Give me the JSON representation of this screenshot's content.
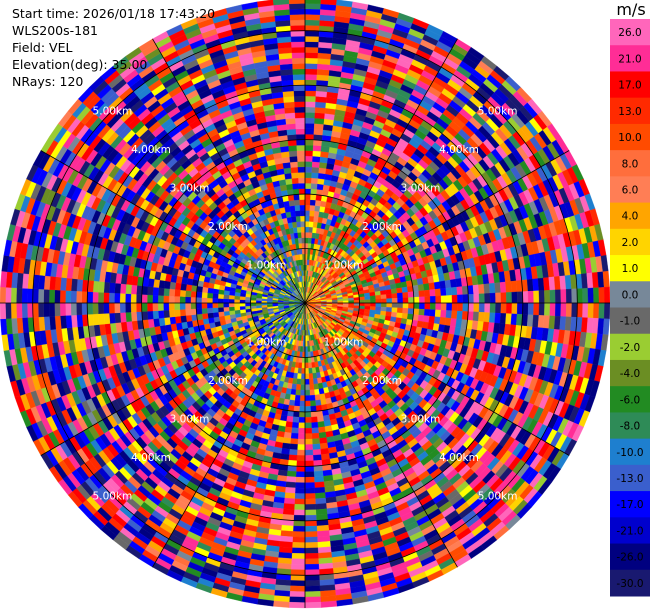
{
  "header": {
    "start_time": "Start time: 2026/01/18 17:43:20",
    "instrument": "WLS200s-181",
    "field": "Field: VEL",
    "elevation": "Elevation(deg): 35.00",
    "nrays": "NRays: 120"
  },
  "chart_data": {
    "type": "heatmap",
    "projection": "polar (PPI scan)",
    "field": "VEL",
    "units": "m/s",
    "nrays": 120,
    "elevation_deg": 35.0,
    "range_rings_km": [
      1.0,
      2.0,
      3.0,
      4.0,
      5.0
    ],
    "ring_labels": [
      "1.00km",
      "2.00km",
      "3.00km",
      "4.00km",
      "5.00km"
    ],
    "max_range_km": 5.6,
    "colorbar": {
      "title": "m/s",
      "tick_labels": [
        "26.0",
        "21.0",
        "17.0",
        "13.0",
        "10.0",
        "8.0",
        "6.0",
        "4.0",
        "2.0",
        "1.0",
        "0.0",
        "-1.0",
        "-2.0",
        "-4.0",
        "-6.0",
        "-8.0",
        "-10.0",
        "-13.0",
        "-17.0",
        "-21.0",
        "-26.0",
        "-30.0"
      ],
      "bins": [
        {
          "lo": 26,
          "hi": 30,
          "color": "#ff66bb"
        },
        {
          "lo": 21,
          "hi": 26,
          "color": "#ff2d96"
        },
        {
          "lo": 17,
          "hi": 21,
          "color": "#ff0000"
        },
        {
          "lo": 13,
          "hi": 17,
          "color": "#ff2a00"
        },
        {
          "lo": 10,
          "hi": 13,
          "color": "#ff4b00"
        },
        {
          "lo": 8,
          "hi": 10,
          "color": "#ff6e3c"
        },
        {
          "lo": 6,
          "hi": 8,
          "color": "#ff7e55"
        },
        {
          "lo": 4,
          "hi": 6,
          "color": "#ffa500"
        },
        {
          "lo": 2,
          "hi": 4,
          "color": "#ffd400"
        },
        {
          "lo": 1,
          "hi": 2,
          "color": "#ffff00"
        },
        {
          "lo": 0,
          "hi": 1,
          "color": "#778899"
        },
        {
          "lo": -1,
          "hi": 0,
          "color": "#696969"
        },
        {
          "lo": -2,
          "hi": -1,
          "color": "#9acd32"
        },
        {
          "lo": -4,
          "hi": -2,
          "color": "#6b8e23"
        },
        {
          "lo": -6,
          "hi": -4,
          "color": "#228b22"
        },
        {
          "lo": -8,
          "hi": -6,
          "color": "#2e8b57"
        },
        {
          "lo": -10,
          "hi": -8,
          "color": "#1e7fcf"
        },
        {
          "lo": -13,
          "hi": -10,
          "color": "#3a5fcd"
        },
        {
          "lo": -17,
          "hi": -13,
          "color": "#0000ff"
        },
        {
          "lo": -21,
          "hi": -17,
          "color": "#0000cd"
        },
        {
          "lo": -26,
          "hi": -21,
          "color": "#000080"
        },
        {
          "lo": -30,
          "hi": -26,
          "color": "#191970"
        }
      ]
    },
    "grid": true,
    "azimuth_lines_deg": [
      0,
      30,
      60,
      90,
      120,
      150
    ]
  }
}
